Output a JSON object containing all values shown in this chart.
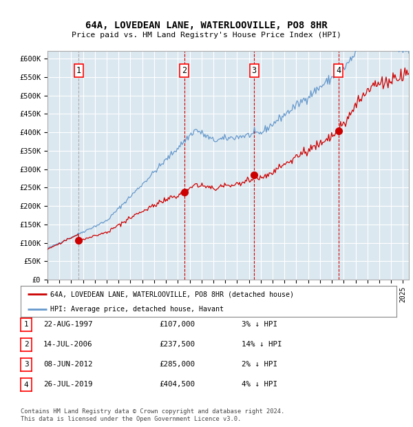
{
  "title": "64A, LOVEDEAN LANE, WATERLOOVILLE, PO8 8HR",
  "subtitle": "Price paid vs. HM Land Registry's House Price Index (HPI)",
  "ylim": [
    0,
    620000
  ],
  "xlim_start": 1995.0,
  "xlim_end": 2025.5,
  "plot_bg_color": "#dce8f0",
  "grid_color": "#ffffff",
  "sale_dates_num": [
    1997.64,
    2006.54,
    2012.44,
    2019.57
  ],
  "sale_prices": [
    107000,
    237500,
    285000,
    404500
  ],
  "sale_labels": [
    "1",
    "2",
    "3",
    "4"
  ],
  "legend_line1": "64A, LOVEDEAN LANE, WATERLOOVILLE, PO8 8HR (detached house)",
  "legend_line2": "HPI: Average price, detached house, Havant",
  "table_entries": [
    {
      "num": "1",
      "date": "22-AUG-1997",
      "price": "£107,000",
      "hpi": "3% ↓ HPI"
    },
    {
      "num": "2",
      "date": "14-JUL-2006",
      "price": "£237,500",
      "hpi": "14% ↓ HPI"
    },
    {
      "num": "3",
      "date": "08-JUN-2012",
      "price": "£285,000",
      "hpi": "2% ↓ HPI"
    },
    {
      "num": "4",
      "date": "26-JUL-2019",
      "price": "£404,500",
      "hpi": "4% ↓ HPI"
    }
  ],
  "footnote": "Contains HM Land Registry data © Crown copyright and database right 2024.\nThis data is licensed under the Open Government Licence v3.0.",
  "red_line_color": "#cc0000",
  "blue_line_color": "#6699cc"
}
